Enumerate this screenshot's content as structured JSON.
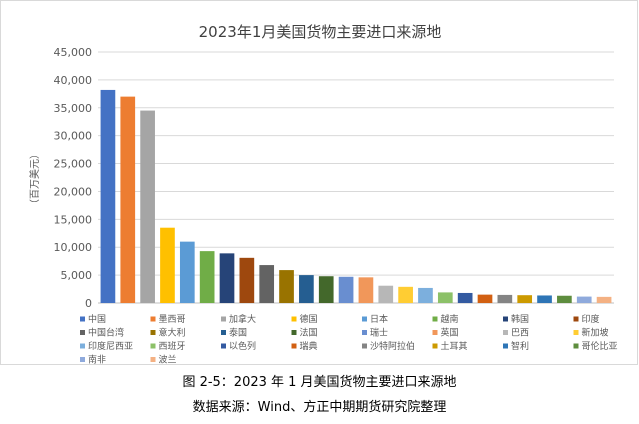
{
  "chart_data": {
    "type": "bar",
    "title": "2023年1月美国货物主要进口来源地",
    "ylabel": "（百万美元）",
    "xlabel": "",
    "ylim": [
      0,
      45000
    ],
    "yticks": [
      "0",
      "5,000",
      "10,000",
      "15,000",
      "20,000",
      "25,000",
      "30,000",
      "35,000",
      "40,000",
      "45,000"
    ],
    "grid": true,
    "legend_position": "bottom",
    "categories": [
      "中国",
      "墨西哥",
      "加拿大",
      "德国",
      "日本",
      "越南",
      "韩国",
      "印度",
      "中国台湾",
      "意大利",
      "泰国",
      "法国",
      "瑞士",
      "英国",
      "巴西",
      "新加坡",
      "印度尼西亚",
      "西班牙",
      "以色列",
      "瑞典",
      "沙特阿拉伯",
      "土耳其",
      "智利",
      "哥伦比亚",
      "南非",
      "波兰"
    ],
    "values": [
      38200,
      37000,
      34500,
      13500,
      11000,
      9300,
      8900,
      8100,
      6800,
      5900,
      5000,
      4800,
      4700,
      4600,
      3100,
      2900,
      2700,
      1900,
      1800,
      1500,
      1450,
      1400,
      1350,
      1300,
      1150,
      1100
    ],
    "colors": [
      "#4472c4",
      "#ed7d31",
      "#a5a5a5",
      "#ffc000",
      "#5b9bd5",
      "#70ad47",
      "#264478",
      "#9e480e",
      "#636363",
      "#997300",
      "#255e91",
      "#43682b",
      "#698ed0",
      "#f1975a",
      "#b7b7b7",
      "#ffcd33",
      "#7cafdd",
      "#8cc168",
      "#335aa1",
      "#d26012",
      "#848484",
      "#cc9a00",
      "#2e75b6",
      "#5e8d3e",
      "#8faadc",
      "#f4b183"
    ]
  },
  "captions": {
    "figure": "图 2-5：2023 年 1 月美国货物主要进口来源地",
    "source": "数据来源：Wind、方正中期期货研究院整理"
  }
}
